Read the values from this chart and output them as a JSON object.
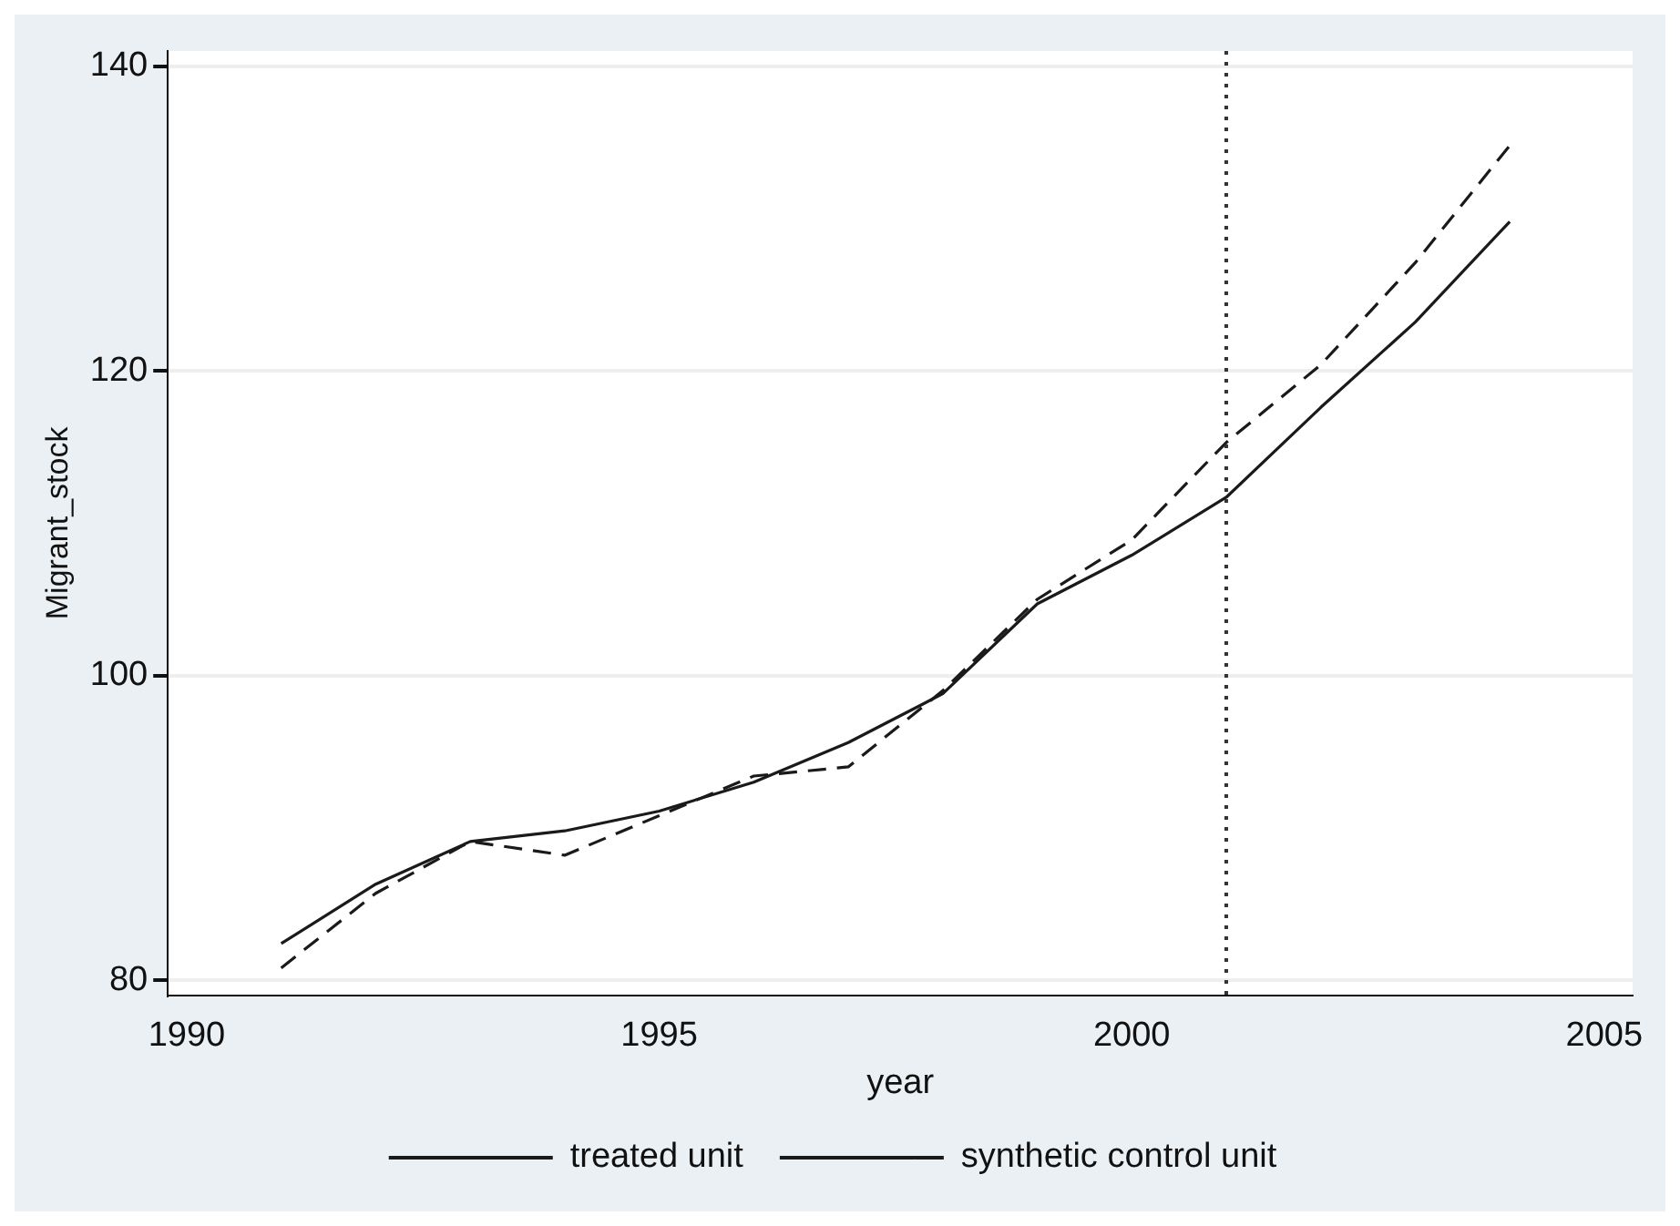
{
  "chart_data": {
    "type": "line",
    "xlabel": "year",
    "ylabel": "Migrant_stock",
    "x": [
      1991,
      1992,
      1993,
      1994,
      1995,
      1996,
      1997,
      1998,
      1999,
      2000,
      2001,
      2002,
      2003,
      2004
    ],
    "series": [
      {
        "name": "treated unit",
        "color": "#1a1a1a",
        "line_style": "solid",
        "values": [
          82.4,
          86.3,
          89.1,
          89.8,
          91.1,
          93,
          95.6,
          98.8,
          104.7,
          107.9,
          111.7,
          117.6,
          123.2,
          129.8
        ]
      },
      {
        "name": "synthetic control unit",
        "color": "#1a1a1a",
        "line_style": "dashed",
        "values": [
          80.8,
          85.7,
          89.1,
          88.2,
          90.8,
          93.4,
          94,
          99,
          105,
          108.9,
          115.3,
          120.4,
          127.1,
          134.8
        ]
      }
    ],
    "xlim": [
      1989.8,
      2005.3
    ],
    "xticks": [
      1990,
      1995,
      2000,
      2005
    ],
    "ylim": [
      79,
      141
    ],
    "yticks": [
      80,
      100,
      120,
      140
    ],
    "ref_lines": [
      {
        "axis": "x",
        "value": 2001,
        "color": "#333333",
        "line_style": "dotted"
      }
    ],
    "grid": "y",
    "legend": "bottom",
    "marker": "none"
  }
}
